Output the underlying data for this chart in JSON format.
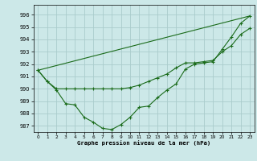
{
  "bg_color": "#cce8e8",
  "grid_color": "#aacccc",
  "line_color": "#1a6b1a",
  "xlim": [
    -0.5,
    23.5
  ],
  "ylim": [
    986.5,
    996.8
  ],
  "yticks": [
    987,
    988,
    989,
    990,
    991,
    992,
    993,
    994,
    995,
    996
  ],
  "xticks": [
    0,
    1,
    2,
    3,
    4,
    5,
    6,
    7,
    8,
    9,
    10,
    11,
    12,
    13,
    14,
    15,
    16,
    17,
    18,
    19,
    20,
    21,
    22,
    23
  ],
  "xlabel": "Graphe pression niveau de la mer (hPa)",
  "line1_x": [
    0,
    1,
    2,
    3,
    4,
    5,
    6,
    7,
    8,
    9,
    10,
    11,
    12,
    13,
    14,
    15,
    16,
    17,
    18,
    19,
    20,
    21,
    22,
    23
  ],
  "line1_y": [
    991.5,
    990.6,
    989.9,
    988.8,
    988.7,
    987.7,
    987.3,
    986.8,
    986.7,
    987.1,
    987.7,
    988.5,
    988.6,
    989.3,
    989.9,
    990.4,
    991.6,
    992.0,
    992.1,
    992.2,
    993.2,
    994.2,
    995.3,
    995.9
  ],
  "line2_x": [
    0,
    1,
    2,
    3,
    4,
    5,
    6,
    7,
    8,
    9,
    10,
    11,
    12,
    13,
    14,
    15,
    16,
    17,
    18,
    19,
    20,
    21,
    22,
    23
  ],
  "line2_y": [
    991.5,
    990.6,
    990.0,
    990.0,
    990.0,
    990.0,
    990.0,
    990.0,
    990.0,
    990.0,
    990.1,
    990.3,
    990.6,
    990.9,
    991.2,
    991.7,
    992.1,
    992.1,
    992.2,
    992.3,
    993.0,
    993.5,
    994.4,
    994.9
  ],
  "line3_x": [
    0,
    23
  ],
  "line3_y": [
    991.5,
    995.9
  ]
}
